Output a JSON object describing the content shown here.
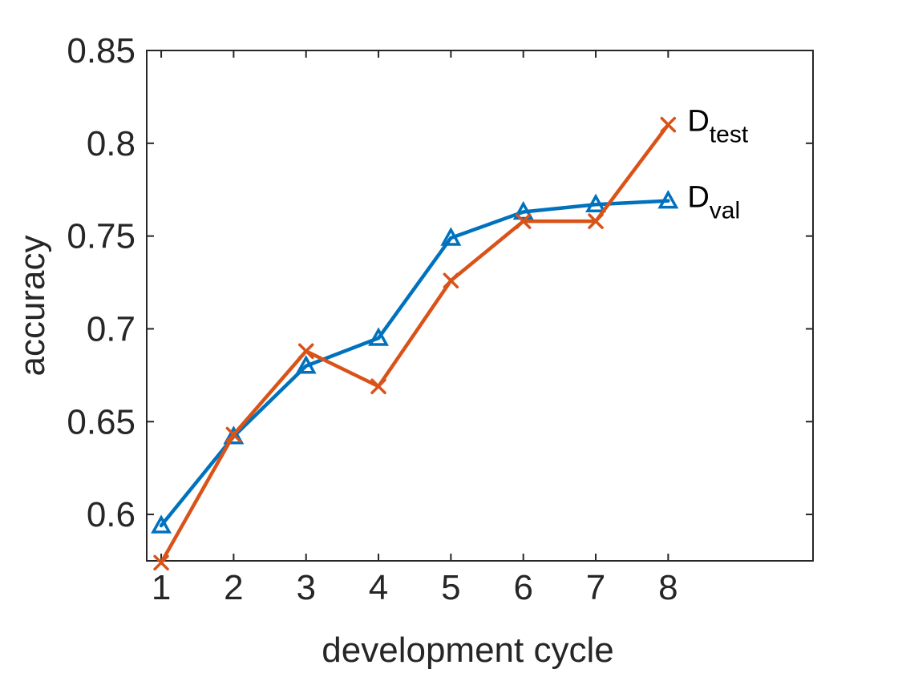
{
  "chart_data": {
    "type": "line",
    "title": "",
    "xlabel": "development cycle",
    "ylabel": "accuracy",
    "x": [
      1,
      2,
      3,
      4,
      5,
      6,
      7,
      8
    ],
    "xlim": [
      0.8,
      10.0
    ],
    "ylim": [
      0.575,
      0.85
    ],
    "xticks": [
      "1",
      "2",
      "3",
      "4",
      "5",
      "6",
      "7",
      "8"
    ],
    "yticks": [
      "0.6",
      "0.65",
      "0.7",
      "0.75",
      "0.8",
      "0.85"
    ],
    "ytick_values": [
      0.6,
      0.65,
      0.7,
      0.75,
      0.8,
      0.85
    ],
    "grid": false,
    "series": [
      {
        "name": "D_val",
        "label_main": "D",
        "label_sub": "val",
        "color": "#0072BD",
        "marker": "triangle",
        "values": [
          0.594,
          0.642,
          0.68,
          0.695,
          0.749,
          0.763,
          0.767,
          0.769
        ]
      },
      {
        "name": "D_test",
        "label_main": "D",
        "label_sub": "test",
        "color": "#D95319",
        "marker": "x",
        "values": [
          0.574,
          0.643,
          0.688,
          0.669,
          0.726,
          0.758,
          0.758,
          0.81
        ]
      }
    ]
  }
}
